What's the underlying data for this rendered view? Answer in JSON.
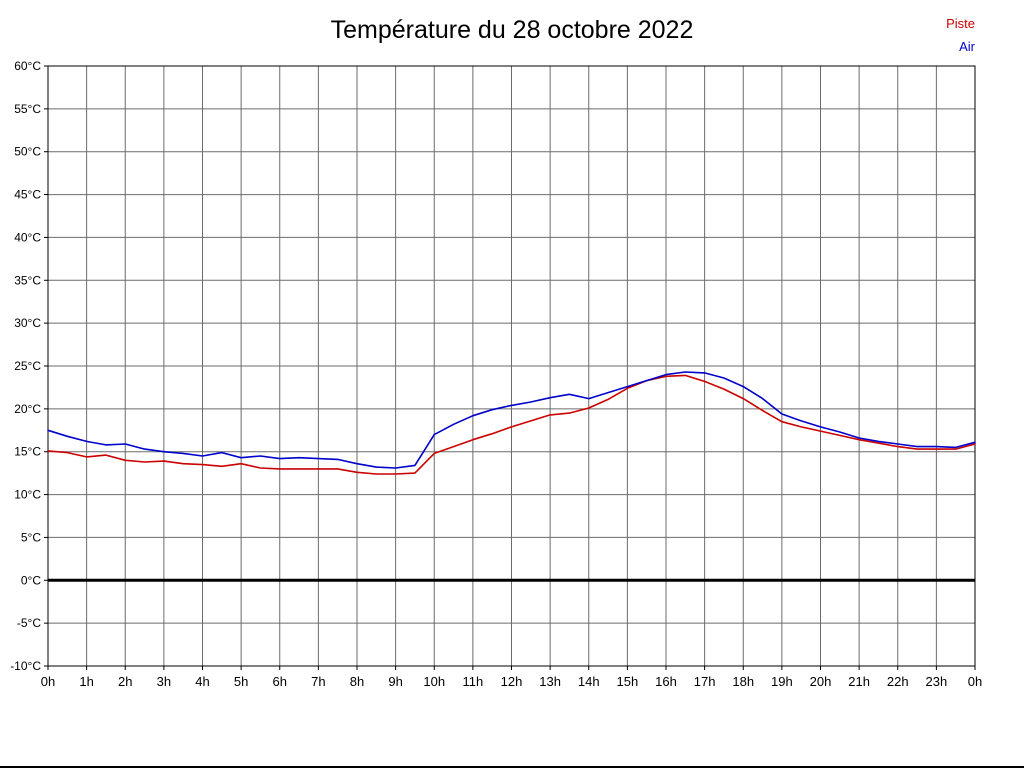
{
  "title": "Température du 28 octobre 2022",
  "legend": {
    "piste_label": "Piste",
    "air_label": "Air"
  },
  "colors": {
    "piste": "#cc0000",
    "air": "#0000cc",
    "grid": "#6b6b6b",
    "axis": "#000000",
    "zero_line": "#000000",
    "tick_text": "#000000"
  },
  "chart_data": {
    "type": "line",
    "title": "Température du 28 octobre 2022",
    "xlabel": "",
    "ylabel": "",
    "xlim": [
      0,
      24
    ],
    "ylim": [
      -10,
      60
    ],
    "grid": true,
    "legend_position": "top-right",
    "zero_line_value": 0,
    "yticks": [
      {
        "value": 60,
        "label": "60°C"
      },
      {
        "value": 55,
        "label": "55°C"
      },
      {
        "value": 50,
        "label": "50°C"
      },
      {
        "value": 45,
        "label": "45°C"
      },
      {
        "value": 40,
        "label": "40°C"
      },
      {
        "value": 35,
        "label": "35°C"
      },
      {
        "value": 30,
        "label": "30°C"
      },
      {
        "value": 25,
        "label": "25°C"
      },
      {
        "value": 20,
        "label": "20°C"
      },
      {
        "value": 15,
        "label": "15°C"
      },
      {
        "value": 10,
        "label": "10°C"
      },
      {
        "value": 5,
        "label": "5°C"
      },
      {
        "value": 0,
        "label": "0°C"
      },
      {
        "value": -5,
        "label": "-5°C"
      },
      {
        "value": -10,
        "label": "-10°C"
      }
    ],
    "xticks": [
      {
        "hour": 0,
        "label": "0h"
      },
      {
        "hour": 1,
        "label": "1h"
      },
      {
        "hour": 2,
        "label": "2h"
      },
      {
        "hour": 3,
        "label": "3h"
      },
      {
        "hour": 4,
        "label": "4h"
      },
      {
        "hour": 5,
        "label": "5h"
      },
      {
        "hour": 6,
        "label": "6h"
      },
      {
        "hour": 7,
        "label": "7h"
      },
      {
        "hour": 8,
        "label": "8h"
      },
      {
        "hour": 9,
        "label": "9h"
      },
      {
        "hour": 10,
        "label": "10h"
      },
      {
        "hour": 11,
        "label": "11h"
      },
      {
        "hour": 12,
        "label": "12h"
      },
      {
        "hour": 13,
        "label": "13h"
      },
      {
        "hour": 14,
        "label": "14h"
      },
      {
        "hour": 15,
        "label": "15h"
      },
      {
        "hour": 16,
        "label": "16h"
      },
      {
        "hour": 17,
        "label": "17h"
      },
      {
        "hour": 18,
        "label": "18h"
      },
      {
        "hour": 19,
        "label": "19h"
      },
      {
        "hour": 20,
        "label": "20h"
      },
      {
        "hour": 21,
        "label": "21h"
      },
      {
        "hour": 22,
        "label": "22h"
      },
      {
        "hour": 23,
        "label": "23h"
      },
      {
        "hour": 24,
        "label": "0h"
      }
    ],
    "series": [
      {
        "name": "Piste",
        "color": "#cc0000",
        "points": [
          [
            0,
            15.1
          ],
          [
            0.5,
            14.9
          ],
          [
            1,
            14.4
          ],
          [
            1.5,
            14.6
          ],
          [
            2,
            14.0
          ],
          [
            2.5,
            13.8
          ],
          [
            3,
            13.9
          ],
          [
            3.5,
            13.6
          ],
          [
            4,
            13.5
          ],
          [
            4.5,
            13.3
          ],
          [
            5,
            13.6
          ],
          [
            5.5,
            13.1
          ],
          [
            6,
            13.0
          ],
          [
            6.5,
            13.0
          ],
          [
            7,
            13.0
          ],
          [
            7.5,
            13.0
          ],
          [
            8,
            12.6
          ],
          [
            8.5,
            12.4
          ],
          [
            9,
            12.4
          ],
          [
            9.5,
            12.5
          ],
          [
            10,
            14.8
          ],
          [
            10.5,
            15.6
          ],
          [
            11,
            16.4
          ],
          [
            11.5,
            17.1
          ],
          [
            12,
            17.9
          ],
          [
            12.5,
            18.6
          ],
          [
            13,
            19.3
          ],
          [
            13.5,
            19.5
          ],
          [
            14,
            20.1
          ],
          [
            14.5,
            21.1
          ],
          [
            15,
            22.4
          ],
          [
            15.5,
            23.3
          ],
          [
            16,
            23.8
          ],
          [
            16.5,
            23.9
          ],
          [
            17,
            23.2
          ],
          [
            17.5,
            22.3
          ],
          [
            18,
            21.2
          ],
          [
            18.5,
            19.8
          ],
          [
            19,
            18.5
          ],
          [
            19.5,
            17.9
          ],
          [
            20,
            17.4
          ],
          [
            20.5,
            16.9
          ],
          [
            21,
            16.4
          ],
          [
            21.5,
            16.0
          ],
          [
            22,
            15.6
          ],
          [
            22.5,
            15.3
          ],
          [
            23,
            15.3
          ],
          [
            23.5,
            15.3
          ],
          [
            24,
            15.9
          ]
        ]
      },
      {
        "name": "Air",
        "color": "#0000cc",
        "points": [
          [
            0,
            17.5
          ],
          [
            0.5,
            16.8
          ],
          [
            1,
            16.2
          ],
          [
            1.5,
            15.8
          ],
          [
            2,
            15.9
          ],
          [
            2.5,
            15.3
          ],
          [
            3,
            15.0
          ],
          [
            3.5,
            14.8
          ],
          [
            4,
            14.5
          ],
          [
            4.5,
            14.9
          ],
          [
            5,
            14.3
          ],
          [
            5.5,
            14.5
          ],
          [
            6,
            14.2
          ],
          [
            6.5,
            14.3
          ],
          [
            7,
            14.2
          ],
          [
            7.5,
            14.1
          ],
          [
            8,
            13.6
          ],
          [
            8.5,
            13.2
          ],
          [
            9,
            13.1
          ],
          [
            9.5,
            13.4
          ],
          [
            10,
            17.0
          ],
          [
            10.5,
            18.2
          ],
          [
            11,
            19.2
          ],
          [
            11.5,
            19.9
          ],
          [
            12,
            20.4
          ],
          [
            12.5,
            20.8
          ],
          [
            13,
            21.3
          ],
          [
            13.5,
            21.7
          ],
          [
            14,
            21.2
          ],
          [
            14.5,
            21.9
          ],
          [
            15,
            22.6
          ],
          [
            15.5,
            23.3
          ],
          [
            16,
            24.0
          ],
          [
            16.5,
            24.3
          ],
          [
            17,
            24.2
          ],
          [
            17.5,
            23.6
          ],
          [
            18,
            22.6
          ],
          [
            18.5,
            21.2
          ],
          [
            19,
            19.4
          ],
          [
            19.5,
            18.6
          ],
          [
            20,
            17.9
          ],
          [
            20.5,
            17.3
          ],
          [
            21,
            16.6
          ],
          [
            21.5,
            16.2
          ],
          [
            22,
            15.9
          ],
          [
            22.5,
            15.6
          ],
          [
            23,
            15.6
          ],
          [
            23.5,
            15.5
          ],
          [
            24,
            16.1
          ]
        ]
      }
    ]
  }
}
